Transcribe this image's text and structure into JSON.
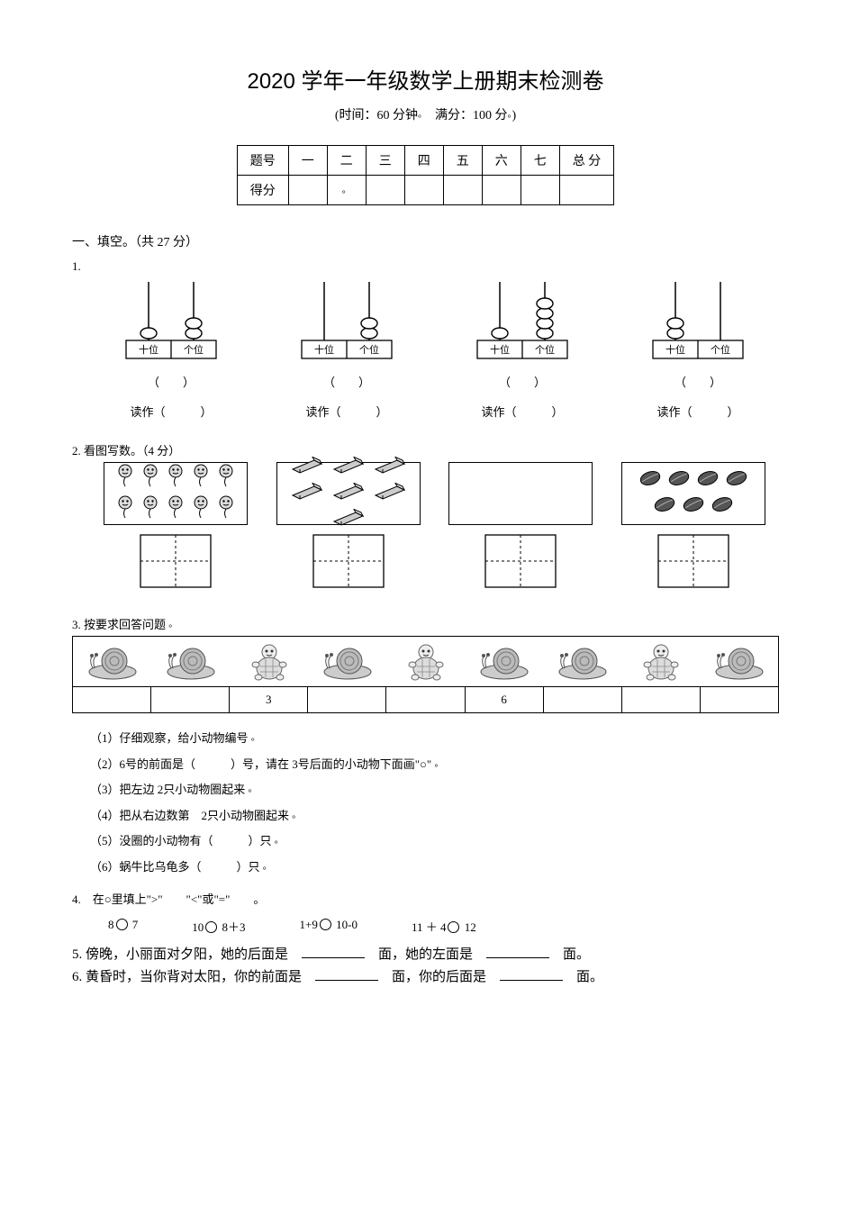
{
  "title": "2020 学年一年级数学上册期末检测卷",
  "subtitle_prefix": "(时间：",
  "subtitle_time": "60 分钟",
  "subtitle_mid": "　满分：",
  "subtitle_score": "100 分",
  "subtitle_suffix": ")",
  "score_table": {
    "row1": [
      "题号",
      "一",
      "二",
      "三",
      "四",
      "五",
      "六",
      "七",
      "总 分"
    ],
    "row2_label": "得分"
  },
  "section1": {
    "heading": "一、填空。（共 27 分）",
    "q1": {
      "label": "1.",
      "abacus": [
        {
          "tens_beads": 1,
          "ones_beads": 2
        },
        {
          "tens_beads": 0,
          "ones_beads": 2
        },
        {
          "tens_beads": 1,
          "ones_beads": 4
        },
        {
          "tens_beads": 2,
          "ones_beads": 0
        }
      ],
      "place_tens": "十位",
      "place_ones": "个位",
      "num_blank": "（　　）",
      "read_label": "读作（　　　）"
    },
    "q2": {
      "label": "2. 看图写数。（4 分）",
      "groups": [
        {
          "type": "balloon",
          "count": 10
        },
        {
          "type": "eraser",
          "count": 7
        },
        {
          "type": "empty",
          "count": 0
        },
        {
          "type": "leaf",
          "count": 7
        }
      ]
    },
    "q3": {
      "label": "3. 按要求回答问题",
      "animals": [
        "snail",
        "snail",
        "turtle",
        "snail",
        "turtle",
        "snail",
        "snail",
        "turtle",
        "snail"
      ],
      "numbers": [
        "",
        "",
        "3",
        "",
        "",
        "6",
        "",
        "",
        ""
      ],
      "subs": [
        "（1）仔细观察，给小动物编号",
        "（2）6号的前面是（　　　）号，请在 3号后面的小动物下面画\"○\"",
        "（3）把左边 2只小动物圈起来",
        "（4）把从右边数第　2只小动物圈起来",
        "（5）没圈的小动物有（　　　）只",
        "（6）蜗牛比乌龟多（　　　）只"
      ]
    },
    "q4": {
      "label": "4.　在○里填上\">\"　　\"<\"或\"=\"　　。",
      "items": [
        "8○ 7",
        "10○ 8＋3",
        "1+9○ 10-0",
        "11 ＋ 4○ 12"
      ]
    },
    "q5": "5. 傍晚，小丽面对夕阳，她的后面是　________　面，她的左面是　________　面。",
    "q6": "6. 黄昏时，当你背对太阳，你的前面是　________　面，你的后面是　________　面。"
  },
  "colors": {
    "ink": "#000000",
    "bg": "#ffffff",
    "gray_fill": "#bfbfbf",
    "dark_gray": "#666666"
  }
}
